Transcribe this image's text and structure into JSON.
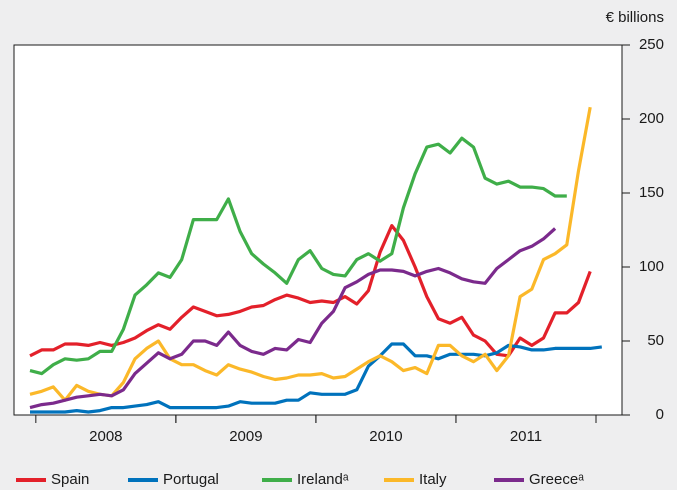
{
  "chart_data": {
    "type": "line",
    "y_axis_label": "€ billions",
    "categories": [
      null,
      null,
      null,
      null,
      null,
      null,
      null,
      "2008",
      null,
      null,
      null,
      null,
      null,
      null,
      null,
      null,
      null,
      null,
      null,
      "2009",
      null,
      null,
      null,
      null,
      null,
      null,
      null,
      null,
      null,
      null,
      null,
      "2010",
      null,
      null,
      null,
      null,
      null,
      null,
      null,
      null,
      null,
      null,
      null,
      "2011",
      null,
      null,
      null,
      null,
      null,
      null
    ],
    "ylim": [
      0,
      250
    ],
    "yticks": [
      0,
      50,
      100,
      150,
      200,
      250
    ],
    "grid": false,
    "series": [
      {
        "name": "Spain",
        "color": "#e3202a",
        "values": [
          40,
          44,
          44,
          48,
          48,
          47,
          49,
          47,
          49,
          52,
          57,
          61,
          58,
          66,
          73,
          70,
          67,
          68,
          70,
          73,
          74,
          78,
          81,
          79,
          76,
          77,
          76,
          80,
          75,
          84,
          110,
          128,
          118,
          100,
          80,
          65,
          62,
          66,
          54,
          50,
          41,
          40,
          52,
          47,
          52,
          69,
          69,
          76,
          97,
          null
        ]
      },
      {
        "name": "Portugal",
        "color": "#0072bc",
        "values": [
          2,
          2,
          2,
          2,
          3,
          2,
          3,
          5,
          5,
          6,
          7,
          9,
          5,
          5,
          5,
          5,
          5,
          6,
          9,
          8,
          8,
          8,
          10,
          10,
          15,
          14,
          14,
          14,
          17,
          33,
          40,
          48,
          48,
          40,
          40,
          38,
          41,
          41,
          41,
          40,
          42,
          47,
          46,
          44,
          44,
          45,
          45,
          45,
          45,
          46
        ]
      },
      {
        "name": "Irelandᵃ",
        "color": "#3fae49",
        "values": [
          30,
          28,
          34,
          38,
          37,
          38,
          43,
          43,
          58,
          81,
          88,
          96,
          93,
          105,
          132,
          132,
          132,
          146,
          124,
          109,
          102,
          96,
          89,
          105,
          111,
          99,
          95,
          94,
          105,
          109,
          104,
          109,
          140,
          163,
          181,
          183,
          177,
          187,
          181,
          160,
          156,
          158,
          154,
          154,
          153,
          148,
          148,
          null,
          null,
          null
        ]
      },
      {
        "name": "Italy",
        "color": "#fbb829",
        "values": [
          14,
          16,
          19,
          10,
          20,
          16,
          14,
          13,
          22,
          38,
          45,
          50,
          38,
          34,
          34,
          30,
          27,
          34,
          31,
          29,
          26,
          24,
          25,
          27,
          27,
          28,
          25,
          26,
          31,
          36,
          40,
          36,
          30,
          32,
          28,
          47,
          47,
          40,
          36,
          41,
          30,
          40,
          80,
          85,
          105,
          109,
          115,
          165,
          208,
          null
        ]
      },
      {
        "name": "Greeceᵃ",
        "color": "#7b2a8c",
        "values": [
          5,
          7,
          8,
          10,
          12,
          13,
          14,
          13,
          17,
          28,
          35,
          42,
          38,
          41,
          50,
          50,
          47,
          56,
          47,
          43,
          41,
          45,
          44,
          51,
          49,
          62,
          70,
          86,
          90,
          95,
          98,
          98,
          97,
          94,
          97,
          99,
          96,
          92,
          90,
          89,
          99,
          105,
          111,
          114,
          119,
          126,
          null,
          null,
          null,
          null
        ]
      }
    ]
  }
}
